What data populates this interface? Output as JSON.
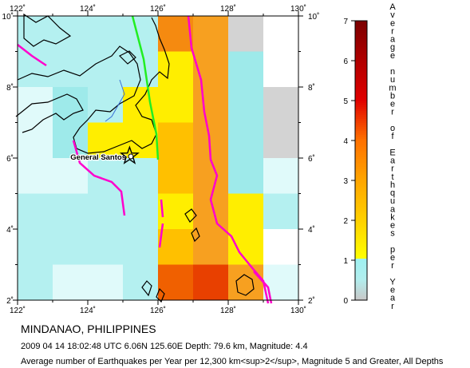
{
  "map": {
    "lon_ticks": [
      "122˚",
      "124˚",
      "126˚",
      "128˚",
      "130˚"
    ],
    "lat_ticks": [
      "2˚",
      "4˚",
      "6˚",
      "8˚",
      "10˚"
    ],
    "lon_range": [
      122,
      130
    ],
    "lat_range": [
      2,
      10
    ],
    "cell_size_deg": 1,
    "city_label": "General Santos",
    "epicenter": {
      "lon": 125.6,
      "lat": 6.06
    },
    "legend": {
      "title_letters": [
        "A",
        "v",
        "e",
        "r",
        "a",
        "g",
        "e",
        "",
        "n",
        "u",
        "m",
        "b",
        "e",
        "r",
        "",
        "o",
        "f",
        "",
        "E",
        "a",
        "r",
        "t",
        "h",
        "q",
        "u",
        "a",
        "k",
        "e",
        "s",
        "",
        "p",
        "e",
        "r",
        "",
        "Y",
        "e",
        "a",
        "r"
      ],
      "ticks": [
        "0",
        "1",
        "2",
        "3",
        "4",
        "5",
        "6",
        "7"
      ],
      "colors": [
        "#c8c8c8",
        "#9ff0f0",
        "#ffff00",
        "#ffa500",
        "#e00000",
        "#7a0000"
      ]
    },
    "grid_colors": {
      "gray": "#d3d3d3",
      "cyan1": "#e0fafa",
      "cyan2": "#b4f0f0",
      "cyan3": "#9eeaea",
      "yellow": "#ffee00",
      "orange1": "#ffc000",
      "orange2": "#f7a020",
      "orange3": "#f58a10",
      "red1": "#f06000",
      "red2": "#e84000"
    }
  },
  "texts": {
    "region": "MINDANAO, PHILIPPINES",
    "event": "2009 04 14 18:02:48 UTC 6.06N 125.60E Depth: 79.6 km, Magnitude: 4.4",
    "caption": "Average number of Earthquakes per Year per 12,300 km<sup>2</sup>, Magnitude 5 and Greater, All Depths"
  }
}
